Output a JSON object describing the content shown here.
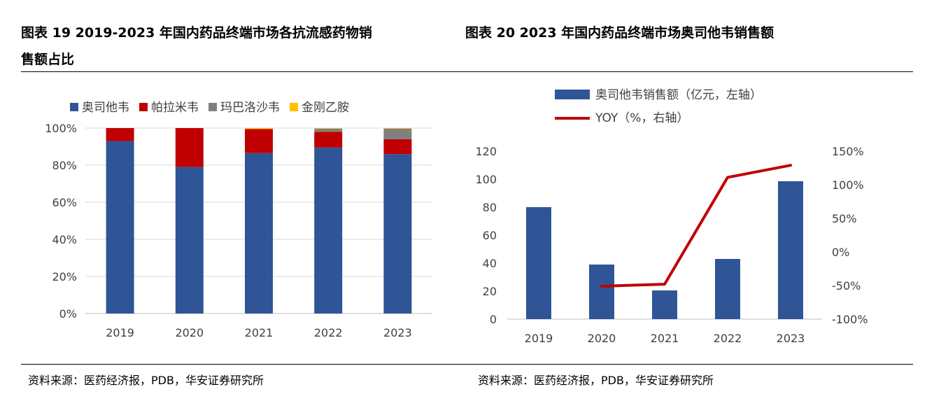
{
  "header": {
    "left_title_line1": "图表 19 2019-2023 年国内药品终端市场各抗流感药物销",
    "left_title_line2": "售额占比",
    "right_title": "图表 20 2023 年国内药品终端市场奥司他韦销售额"
  },
  "footer": {
    "left_source": "资料来源：医药经济报，PDB，华安证券研究所",
    "right_source": "资料来源：医药经济报，PDB，华安证券研究所"
  },
  "colors": {
    "oseltamivir": "#2F5597",
    "peramivir": "#C00000",
    "baloxavir": "#808080",
    "amantadine": "#FFC000",
    "yoy": "#C00000",
    "grid": "#D9D9D9",
    "axis_text": "#404040"
  },
  "chart_data": [
    {
      "type": "bar",
      "stacked": true,
      "percent": true,
      "categories": [
        "2019",
        "2020",
        "2021",
        "2022",
        "2023"
      ],
      "series": [
        {
          "name": "奥司他韦",
          "values": [
            93,
            79,
            86.5,
            89.5,
            86
          ]
        },
        {
          "name": "帕拉米韦",
          "values": [
            7,
            21,
            13,
            8.5,
            8
          ]
        },
        {
          "name": "玛巴洛沙韦",
          "values": [
            0,
            0,
            0,
            1.7,
            5.7
          ]
        },
        {
          "name": "金刚乙胺",
          "values": [
            0,
            0,
            0.5,
            0.3,
            0.3
          ]
        }
      ],
      "y_ticks": [
        "0%",
        "20%",
        "40%",
        "60%",
        "80%",
        "100%"
      ],
      "ylim": [
        0,
        100
      ],
      "grid": true,
      "legend": "top"
    },
    {
      "type": "bar",
      "categories": [
        "2019",
        "2020",
        "2021",
        "2022",
        "2023"
      ],
      "series": [
        {
          "name": "奥司他韦销售额（亿元，左轴）",
          "type": "bar",
          "axis": "left",
          "values": [
            80,
            39,
            20.5,
            43,
            98.5
          ]
        },
        {
          "name": "YOY（%，右轴）",
          "type": "line",
          "axis": "right",
          "values": [
            null,
            -51,
            -48,
            111,
            129
          ]
        }
      ],
      "y_left_ticks": [
        "0",
        "20",
        "40",
        "60",
        "80",
        "100",
        "120"
      ],
      "y_right_ticks": [
        "-100%",
        "-50%",
        "0%",
        "50%",
        "100%",
        "150%"
      ],
      "ylim_left": [
        0,
        120
      ],
      "ylim_right": [
        -100,
        150
      ],
      "grid": false,
      "legend": "top"
    }
  ]
}
